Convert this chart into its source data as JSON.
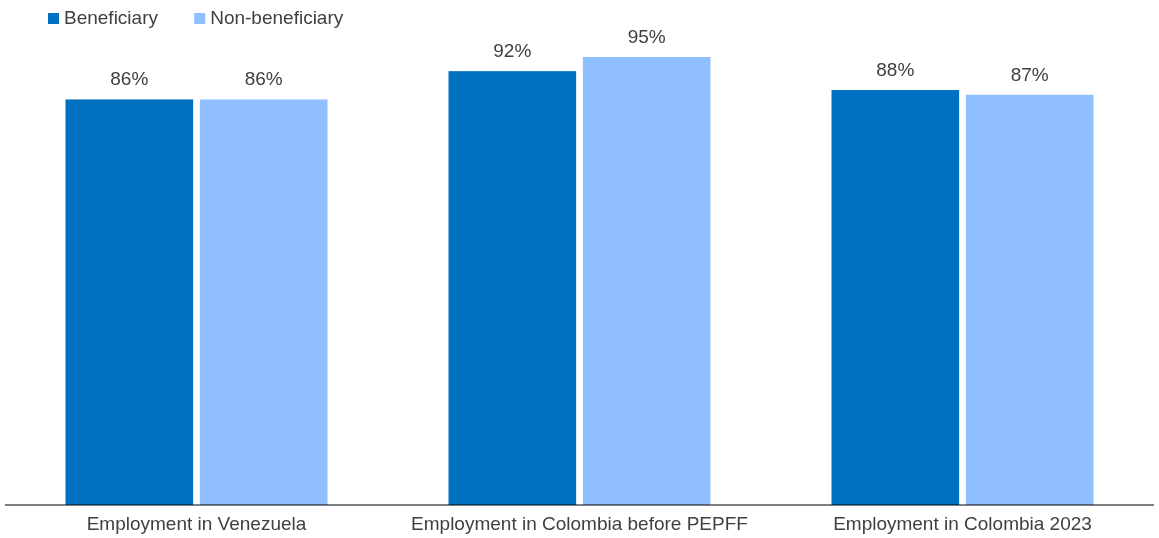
{
  "chart_data": {
    "type": "bar",
    "categories": [
      "Employment in Venezuela",
      "Employment in Colombia before PEPFF",
      "Employment in Colombia 2023"
    ],
    "series": [
      {
        "name": "Beneficiary",
        "color": "#0070c0",
        "values": [
          86,
          92,
          88
        ],
        "value_labels": [
          "86%",
          "92%",
          "88%"
        ]
      },
      {
        "name": "Non-beneficiary",
        "color": "#8fbfff",
        "values": [
          86,
          95,
          87
        ],
        "value_labels": [
          "86%",
          "95%",
          "87%"
        ]
      }
    ],
    "tick_labels": "x",
    "legend": "top left"
  }
}
